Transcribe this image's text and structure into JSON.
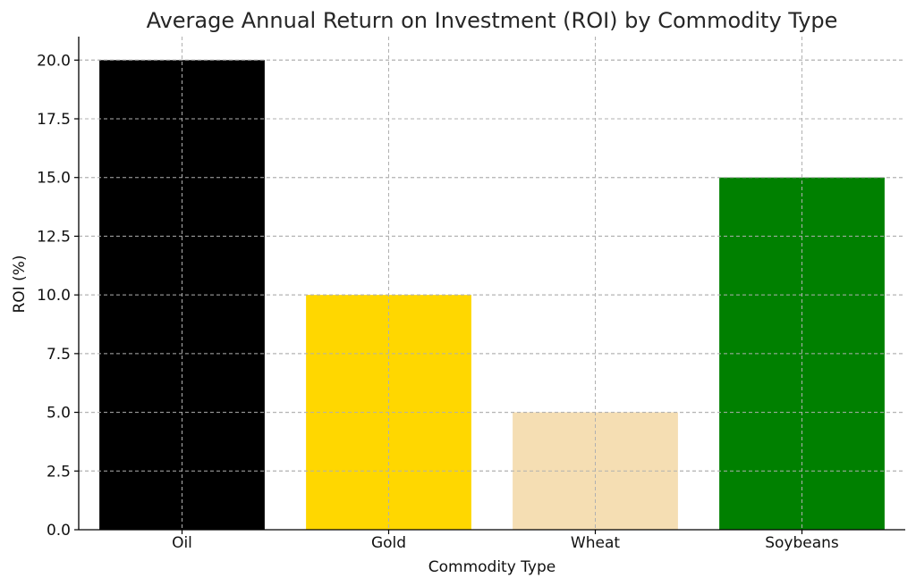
{
  "chart_data": {
    "type": "bar",
    "title": "Average Annual Return on Investment (ROI) by Commodity Type",
    "xlabel": "Commodity Type",
    "ylabel": "ROI (%)",
    "categories": [
      "Oil",
      "Gold",
      "Wheat",
      "Soybeans"
    ],
    "values": [
      20,
      10,
      5,
      15
    ],
    "colors": [
      "#000000",
      "#ffd700",
      "#f5deb3",
      "#008000"
    ],
    "ylim": [
      0,
      21
    ],
    "yticks": [
      0.0,
      2.5,
      5.0,
      7.5,
      10.0,
      12.5,
      15.0,
      17.5,
      20.0
    ],
    "ytick_labels": [
      "0.0",
      "2.5",
      "5.0",
      "7.5",
      "10.0",
      "12.5",
      "15.0",
      "17.5",
      "20.0"
    ],
    "grid": true,
    "legend": "none"
  }
}
